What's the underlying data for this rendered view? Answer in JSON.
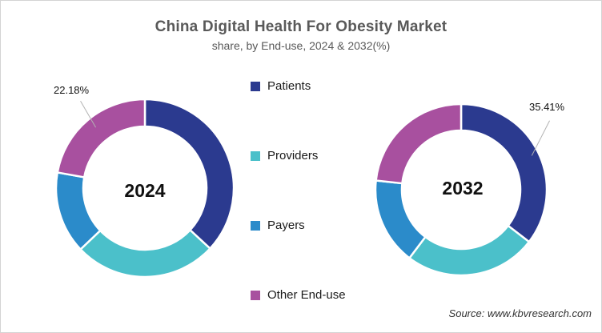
{
  "page": {
    "title": "China Digital Health For Obesity Market",
    "subtitle": "share, by End-use, 2024 & 2032(%)",
    "source": "Source: www.kbvresearch.com"
  },
  "colors": {
    "patients": "#2B3A8F",
    "providers": "#4BC0CA",
    "payers": "#2B8BCA",
    "other_end_use": "#A8509F",
    "title_text": "#595959",
    "leader_line": "#b3b3b3",
    "border": "#d4d4d4"
  },
  "legend": {
    "position": "center-column",
    "items": [
      {
        "label": "Patients",
        "color": "#2B3A8F"
      },
      {
        "label": "Providers",
        "color": "#4BC0CA"
      },
      {
        "label": "Payers",
        "color": "#2B8BCA"
      },
      {
        "label": "Other End-use",
        "color": "#A8509F"
      }
    ]
  },
  "chart_data": [
    {
      "type": "pie",
      "subtype": "donut",
      "title": "2024",
      "center_label": "2024",
      "units": "%",
      "categories": [
        "Patients",
        "Providers",
        "Payers",
        "Other End-use"
      ],
      "values": [
        36.9,
        26.0,
        14.92,
        22.18
      ],
      "colors": [
        "#2B3A8F",
        "#4BC0CA",
        "#2B8BCA",
        "#A8509F"
      ],
      "start_angle_deg": 0,
      "direction": "clockwise",
      "callout": {
        "category": "Other End-use",
        "text": "22.18%"
      },
      "note": "only Other End-use is explicitly labeled; other values estimated from arc angles"
    },
    {
      "type": "pie",
      "subtype": "donut",
      "title": "2032",
      "center_label": "2032",
      "units": "%",
      "categories": [
        "Patients",
        "Providers",
        "Payers",
        "Other End-use"
      ],
      "values": [
        35.41,
        24.9,
        16.4,
        23.29
      ],
      "colors": [
        "#2B3A8F",
        "#4BC0CA",
        "#2B8BCA",
        "#A8509F"
      ],
      "start_angle_deg": 0,
      "direction": "clockwise",
      "callout": {
        "category": "Patients",
        "text": "35.41%"
      },
      "note": "only Patients is explicitly labeled; other values estimated from arc angles"
    }
  ]
}
